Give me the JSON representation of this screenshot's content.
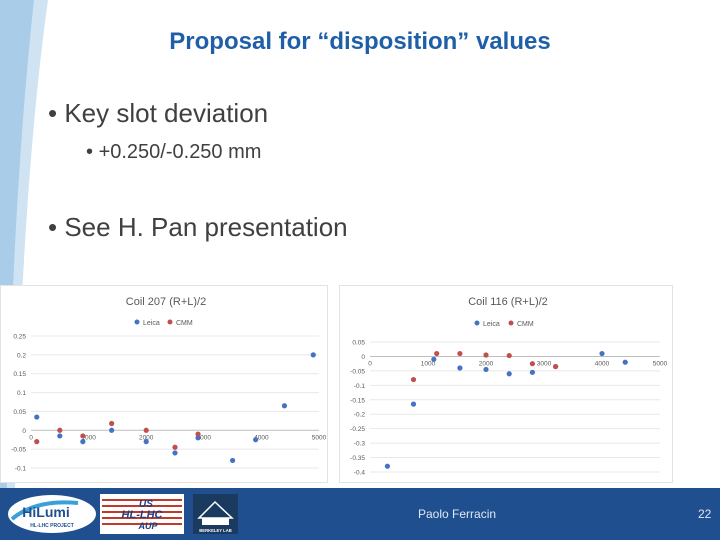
{
  "slide": {
    "title": "Proposal for “disposition” values",
    "bullets": [
      {
        "text": "Key slot deviation",
        "sub": [
          "+0.250/-0.250 mm"
        ]
      },
      {
        "text": "See H. Pan presentation",
        "sub": []
      }
    ],
    "footer": {
      "author": "Paolo Ferracin",
      "page": "22"
    },
    "logos": {
      "hilumi": "HiLumi",
      "hilumi_sub": "HL-LHC PROJECT",
      "us": "US",
      "hllhc": "HL-LHC",
      "aup": "AUP",
      "berkeley": "BERKELEY LAB"
    }
  },
  "colors": {
    "title": "#1f5fa8",
    "leica": "#4472c4",
    "cmm": "#c0504d",
    "footer": "#1f4f8f"
  },
  "chart_data": [
    {
      "type": "scatter",
      "title": "Coil 207 (R+L)/2",
      "legend": [
        "Leica",
        "CMM"
      ],
      "legend_position": "top",
      "grid": true,
      "xlim": [
        0,
        5000
      ],
      "ylim": [
        -0.1,
        0.25
      ],
      "xticks": [
        "0",
        "1000",
        "2000",
        "3000",
        "4000",
        "5000"
      ],
      "yticks": [
        "0.25",
        "0.2",
        "0.15",
        "0.1",
        "0.05",
        "0",
        "-0.05",
        "-0.1"
      ],
      "series": [
        {
          "name": "Leica",
          "color": "#4472c4",
          "points": [
            [
              100,
              0.035
            ],
            [
              500,
              -0.015
            ],
            [
              900,
              -0.03
            ],
            [
              1400,
              0
            ],
            [
              2000,
              -0.03
            ],
            [
              2500,
              -0.06
            ],
            [
              2900,
              -0.02
            ],
            [
              3500,
              -0.08
            ],
            [
              3900,
              -0.025
            ],
            [
              4400,
              0.065
            ],
            [
              4900,
              0.2
            ]
          ]
        },
        {
          "name": "CMM",
          "color": "#c0504d",
          "points": [
            [
              100,
              -0.03
            ],
            [
              500,
              0
            ],
            [
              900,
              -0.015
            ],
            [
              1400,
              0.018
            ],
            [
              2000,
              0
            ],
            [
              2500,
              -0.045
            ],
            [
              2900,
              -0.01
            ]
          ]
        }
      ]
    },
    {
      "type": "scatter",
      "title": "Coil 116 (R+L)/2",
      "legend": [
        "Leica",
        "CMM"
      ],
      "legend_position": "top",
      "grid": true,
      "xlim": [
        0,
        5000
      ],
      "ylim": [
        -0.4,
        0.05
      ],
      "xticks": [
        "0",
        "1000",
        "2000",
        "3000",
        "4000",
        "5000"
      ],
      "yticks": [
        "0.05",
        "0",
        "-0.05",
        "-0.1",
        "-0.15",
        "-0.2",
        "-0.25",
        "-0.3",
        "-0.35",
        "-0.4"
      ],
      "series": [
        {
          "name": "Leica",
          "color": "#4472c4",
          "points": [
            [
              300,
              -0.38
            ],
            [
              750,
              -0.165
            ],
            [
              1100,
              -0.01
            ],
            [
              1550,
              -0.04
            ],
            [
              2000,
              -0.045
            ],
            [
              2400,
              -0.06
            ],
            [
              2800,
              -0.055
            ],
            [
              3200,
              -0.035
            ],
            [
              4000,
              0.01
            ],
            [
              4400,
              -0.02
            ]
          ]
        },
        {
          "name": "CMM",
          "color": "#c0504d",
          "points": [
            [
              750,
              -0.08
            ],
            [
              1150,
              0.01
            ],
            [
              1550,
              0.01
            ],
            [
              2000,
              0.005
            ],
            [
              2400,
              0.003
            ],
            [
              2800,
              -0.025
            ],
            [
              3200,
              -0.035
            ]
          ]
        }
      ]
    }
  ]
}
